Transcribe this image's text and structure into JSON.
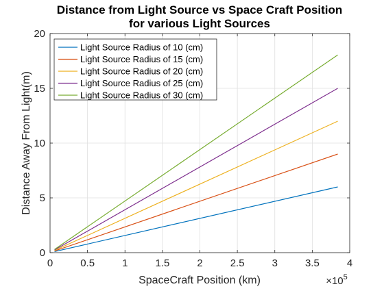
{
  "chart_data": {
    "type": "line",
    "title": [
      "Distance from Light Source vs Space Craft Position",
      "for various Light Sources"
    ],
    "xlabel": "SpaceCraft Position (km)",
    "ylabel": "Distance Away From Light(m)",
    "x_exponent_label": "×10",
    "x_exponent_power": "5",
    "xlim": [
      0,
      4
    ],
    "ylim": [
      0,
      20
    ],
    "xticks": [
      0,
      0.5,
      1,
      1.5,
      2,
      2.5,
      3,
      3.5,
      4
    ],
    "xtick_labels": [
      "0",
      "0.5",
      "1",
      "1.5",
      "2",
      "2.5",
      "3",
      "3.5",
      "4"
    ],
    "yticks": [
      0,
      5,
      10,
      15,
      20
    ],
    "ytick_labels": [
      "0",
      "5",
      "10",
      "15",
      "20"
    ],
    "grid": true,
    "legend_position": "top-left",
    "series": [
      {
        "name": "Light Source Radius of 10 (cm)",
        "color": "#0072BD",
        "x": [
          0.06,
          3.84
        ],
        "y": [
          0.1,
          6.0
        ]
      },
      {
        "name": "Light Source Radius of 15 (cm)",
        "color": "#D95319",
        "x": [
          0.06,
          3.84
        ],
        "y": [
          0.15,
          9.0
        ]
      },
      {
        "name": "Light Source Radius of 20 (cm)",
        "color": "#EDB120",
        "x": [
          0.06,
          3.84
        ],
        "y": [
          0.2,
          12.0
        ]
      },
      {
        "name": "Light Source Radius of 25 (cm)",
        "color": "#7E2F8E",
        "x": [
          0.06,
          3.84
        ],
        "y": [
          0.25,
          15.0
        ]
      },
      {
        "name": "Light Source Radius of 30 (cm)",
        "color": "#77AC30",
        "x": [
          0.06,
          3.84
        ],
        "y": [
          0.3,
          18.05
        ]
      }
    ]
  }
}
